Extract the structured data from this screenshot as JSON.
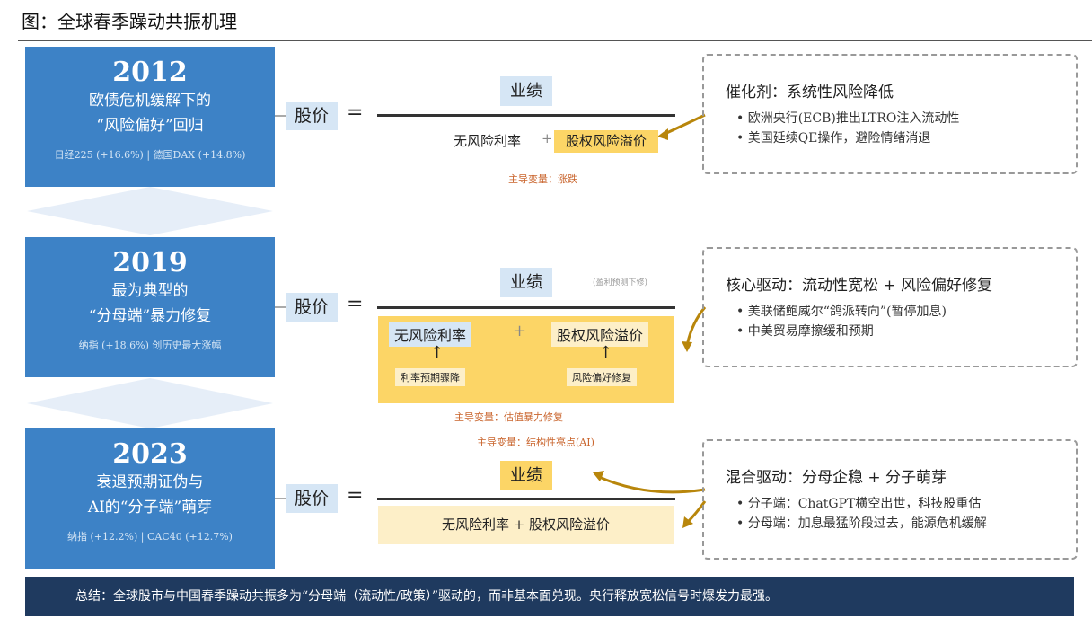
{
  "title": "图：全球春季躁动共振机理",
  "eras": [
    {
      "year": "2012",
      "line1": "欧债危机缓解下的",
      "line2": "“风险偏好”回归",
      "perf": "日经225 (+16.6%) | 德国DAX (+14.8%)"
    },
    {
      "year": "2019",
      "line1": "最为典型的",
      "line2": "“分母端”暴力修复",
      "perf": "纳指 (+18.6%) 创历史最大涨幅"
    },
    {
      "year": "2023",
      "line1": "衰退预期证伪与",
      "line2": "AI的“分子端”萌芽",
      "perf": "纳指 (+12.2%) | CAC40 (+12.7%)"
    }
  ],
  "formula": {
    "price": "股价",
    "equals": "=",
    "numerator": "业绩",
    "rf": "无风险利率",
    "plus": "+",
    "erp": "股权风险溢价",
    "row1_driver": "主导变量：涨跌",
    "row2_note": "(盈利预测下修)",
    "row2_rf_cause": "利率预期骤降",
    "row2_erp_cause": "风险偏好修复",
    "row2_driver": "主导变量：估值暴力修复",
    "row3_driver": "主导变量：结构性亮点(AI)",
    "row3_denominator": "无风险利率 + 股权风险溢价"
  },
  "notes": [
    {
      "heading": "催化剂：系统性风险降低",
      "items": [
        "• 欧洲央行(ECB)推出LTRO注入流动性",
        "• 美国延续QE操作，避险情绪消退"
      ]
    },
    {
      "heading": "核心驱动：流动性宽松 + 风险偏好修复",
      "items": [
        "• 美联储鲍威尔“鸽派转向”(暂停加息)",
        "• 中美贸易摩擦缓和预期"
      ]
    },
    {
      "heading": "混合驱动：分母企稳 + 分子萌芽",
      "items": [
        "• 分子端：ChatGPT横空出世，科技股重估",
        "• 分母端：加息最猛阶段过去，能源危机缓解"
      ]
    }
  ],
  "summary": "总结：全球股市与中国春季躁动共振多为“分母端（流动性/政策）”驱动的，而非基本面兑现。央行释放宽松信号时爆发力最强。",
  "colors": {
    "era_blue": "#3d82c6",
    "highlight_yellow": "#fcd566",
    "light_yellow": "#fdefc8",
    "light_blue": "#d6e6f5",
    "driver_orange": "#c9642c",
    "arrow_gold": "#b8860b",
    "summary_navy": "#1f3a5f"
  }
}
